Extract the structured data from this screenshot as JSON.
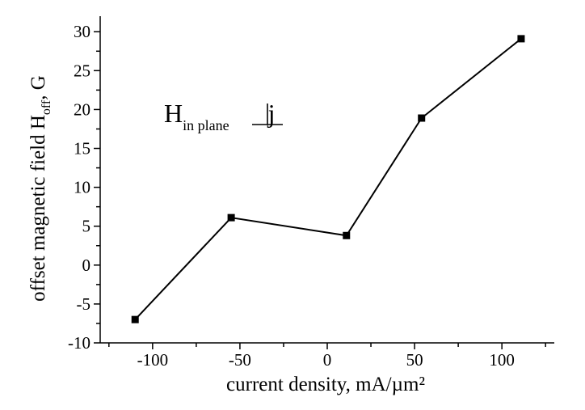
{
  "chart_data": {
    "type": "line",
    "xlabel": "current density, mA/µm²",
    "ylabel": "offset magnetic field Hₒₓₓ, G",
    "ylabel_parts": {
      "main": "offset magnetic field H",
      "subscript": "off",
      "tail": ", G"
    },
    "annotation": {
      "main": "H",
      "subscript": "in plane",
      "tail": "j",
      "symbol": "perpendicular"
    },
    "xlim": [
      -130,
      130
    ],
    "ylim": [
      -10,
      32
    ],
    "xticks": [
      -100,
      -50,
      0,
      50,
      100
    ],
    "xtick_labels": [
      "-100",
      "-50",
      "0",
      "50",
      "100"
    ],
    "yticks": [
      -10,
      -5,
      0,
      5,
      10,
      15,
      20,
      25,
      30
    ],
    "ytick_labels": [
      "-10",
      "-5",
      "0",
      "5",
      "10",
      "15",
      "20",
      "25",
      "30"
    ],
    "series": [
      {
        "x": [
          -110,
          -55,
          11,
          54,
          111
        ],
        "y": [
          -7,
          6.1,
          3.8,
          18.9,
          29.1
        ],
        "marker": "square",
        "color": "#000000"
      }
    ],
    "grid": false,
    "legend": "none"
  }
}
